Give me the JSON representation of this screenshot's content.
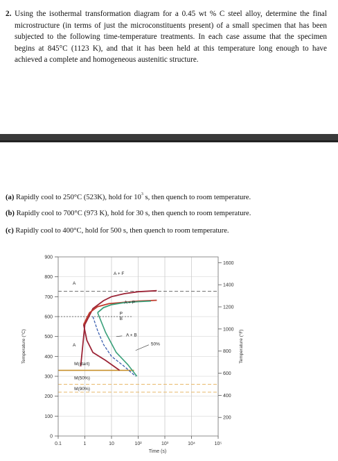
{
  "problem": {
    "number": "2.",
    "text": "Using the isothermal transformation diagram for a 0.45 wt % C steel alloy, determine the final microstructure (in terms of just the microconstituents present) of a small specimen that has been subjected to the following time-temperature treatments. In each case assume that the specimen begins at 845°C (1123 K), and that it has been held at this temperature long enough to have achieved a complete and homogeneous austenitic structure."
  },
  "parts": [
    {
      "label": "(a)",
      "pre": "Rapidly cool to 250°C (523K), hold for 10",
      "sup": "3",
      "post": " s, then quench to room temperature."
    },
    {
      "label": "(b)",
      "pre": "Rapidly cool to 700°C (973 K), hold for 30 s, then quench to room temperature.",
      "sup": "",
      "post": ""
    },
    {
      "label": "(c)",
      "pre": "Rapidly cool to 400°C, hold for 500 s, then quench to room temperature.",
      "sup": "",
      "post": ""
    }
  ],
  "chart_data": {
    "type": "line",
    "xlabel": "Time (s)",
    "ylabel": "Temperature (°C)",
    "ylabel_right": "Temperature (°F)",
    "xscale": "log",
    "xlim": [
      0.1,
      100000
    ],
    "ylim": [
      0,
      900
    ],
    "x_ticks": [
      "0.1",
      "1",
      "10",
      "10²",
      "10³",
      "10⁴",
      "10⁵"
    ],
    "y_ticks": [
      0,
      100,
      200,
      300,
      400,
      500,
      600,
      700,
      800,
      900
    ],
    "y_ticks_right": [
      200,
      400,
      600,
      800,
      1000,
      1200,
      1400,
      1600
    ],
    "grid": true,
    "annotations": [
      "A",
      "A + F",
      "A + P",
      "P",
      "B",
      "A + B",
      "50%",
      "A",
      "M(start)",
      "M(50%)",
      "M(90%)"
    ],
    "series": [
      {
        "color": "#9b2335",
        "x": [
          0.7,
          1,
          2,
          5,
          10,
          30,
          100,
          500
        ],
        "y": [
          350,
          560,
          640,
          680,
          700,
          715,
          725,
          730
        ]
      },
      {
        "color": "#c0392b",
        "x": [
          0.9,
          1.5,
          3,
          8,
          30,
          100,
          500
        ],
        "y": [
          560,
          620,
          650,
          665,
          672,
          678,
          682
        ]
      },
      {
        "color": "#3aa07a",
        "x": [
          3,
          5,
          10,
          30,
          100,
          300
        ],
        "y": [
          620,
          645,
          660,
          670,
          675,
          678
        ]
      },
      {
        "color": "#3b5fb0",
        "x": [
          2,
          3,
          5,
          10,
          30,
          80
        ],
        "y": [
          600,
          530,
          460,
          400,
          350,
          300
        ]
      }
    ],
    "lines": [
      {
        "name": "M(start)",
        "y": 330,
        "color": "#c8902a"
      },
      {
        "name": "M(50%)",
        "y": 260,
        "color": "#e8b96a"
      },
      {
        "name": "M(90%)",
        "y": 220,
        "color": "#e8b96a"
      }
    ]
  }
}
